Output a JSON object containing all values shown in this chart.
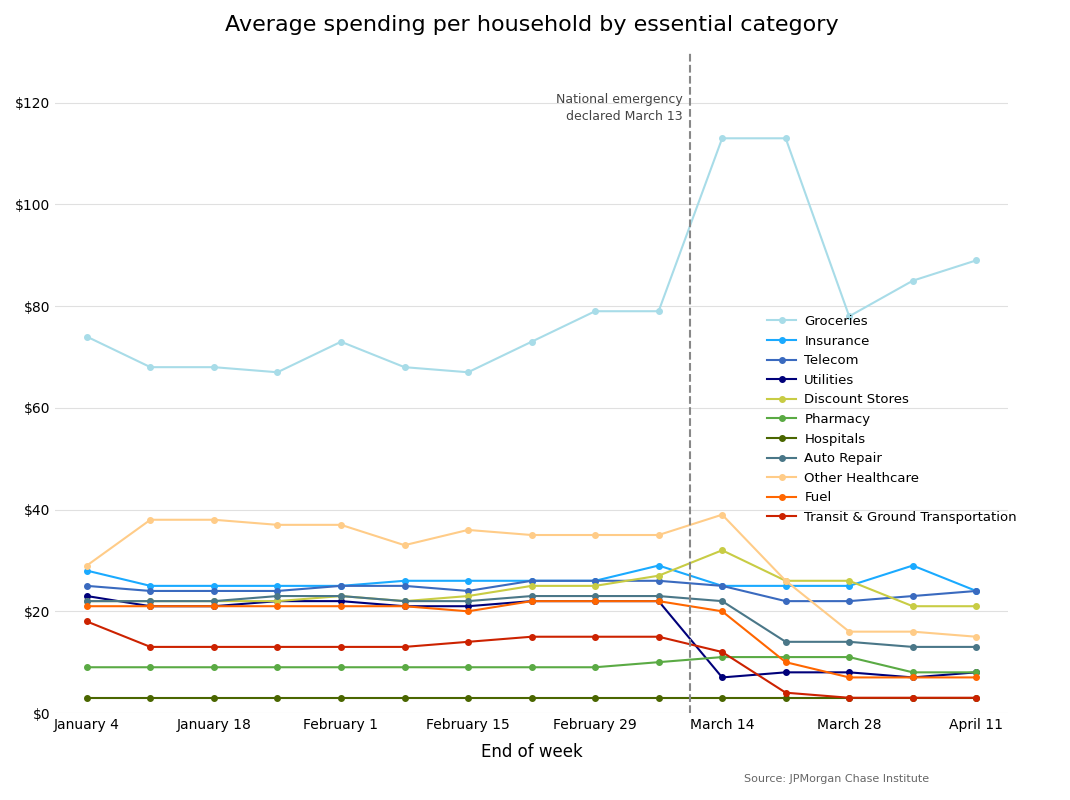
{
  "title": "Average spending per household by essential category",
  "xlabel": "End of week",
  "x_labels": [
    "January 4",
    "January 18",
    "February 1",
    "February 15",
    "February 29",
    "March 14",
    "March 28",
    "April 11"
  ],
  "major_tick_positions": [
    0,
    2,
    4,
    6,
    8,
    10,
    12,
    14
  ],
  "vline_pos": 9.5,
  "vline_label": "National emergency\ndeclared March 13",
  "ylim": [
    0,
    130
  ],
  "yticks": [
    0,
    20,
    40,
    60,
    80,
    100,
    120
  ],
  "ytick_labels": [
    "$0",
    "$20",
    "$40",
    "$60",
    "$80",
    "$100",
    "$120"
  ],
  "series": [
    {
      "name": "Groceries",
      "color": "#a8dce8",
      "values": [
        74,
        68,
        68,
        67,
        73,
        68,
        67,
        73,
        79,
        79,
        113,
        113,
        78,
        85,
        89
      ]
    },
    {
      "name": "Insurance",
      "color": "#1aaaff",
      "values": [
        28,
        25,
        25,
        25,
        25,
        26,
        26,
        26,
        26,
        29,
        25,
        25,
        25,
        29,
        24
      ]
    },
    {
      "name": "Telecom",
      "color": "#3a6abf",
      "values": [
        25,
        24,
        24,
        24,
        25,
        25,
        24,
        26,
        26,
        26,
        25,
        22,
        22,
        23,
        24
      ]
    },
    {
      "name": "Utilities",
      "color": "#00007a",
      "values": [
        23,
        21,
        21,
        22,
        22,
        21,
        21,
        22,
        22,
        22,
        7,
        8,
        8,
        7,
        8
      ]
    },
    {
      "name": "Discount Stores",
      "color": "#c8cc44",
      "values": [
        22,
        22,
        22,
        22,
        23,
        22,
        23,
        25,
        25,
        27,
        32,
        26,
        26,
        21,
        21
      ]
    },
    {
      "name": "Pharmacy",
      "color": "#5aaa44",
      "values": [
        9,
        9,
        9,
        9,
        9,
        9,
        9,
        9,
        9,
        10,
        11,
        11,
        11,
        8,
        8
      ]
    },
    {
      "name": "Hospitals",
      "color": "#4a6600",
      "values": [
        3,
        3,
        3,
        3,
        3,
        3,
        3,
        3,
        3,
        3,
        3,
        3,
        3,
        3,
        3
      ]
    },
    {
      "name": "Auto Repair",
      "color": "#4a7788",
      "values": [
        22,
        22,
        22,
        23,
        23,
        22,
        22,
        23,
        23,
        23,
        22,
        14,
        14,
        13,
        13
      ]
    },
    {
      "name": "Other Healthcare",
      "color": "#ffcc88",
      "values": [
        29,
        38,
        38,
        37,
        37,
        33,
        36,
        35,
        35,
        35,
        39,
        26,
        16,
        16,
        15
      ]
    },
    {
      "name": "Fuel",
      "color": "#ff6600",
      "values": [
        21,
        21,
        21,
        21,
        21,
        21,
        20,
        22,
        22,
        22,
        20,
        10,
        7,
        7,
        7
      ]
    },
    {
      "name": "Transit & Ground Transportation",
      "color": "#cc2200",
      "values": [
        18,
        13,
        13,
        13,
        13,
        13,
        14,
        15,
        15,
        15,
        12,
        4,
        3,
        3,
        3
      ]
    }
  ],
  "background_color": "#ffffff",
  "grid_color": "#e0e0e0",
  "source_text": "Source: JPMorgan Chase Institute"
}
